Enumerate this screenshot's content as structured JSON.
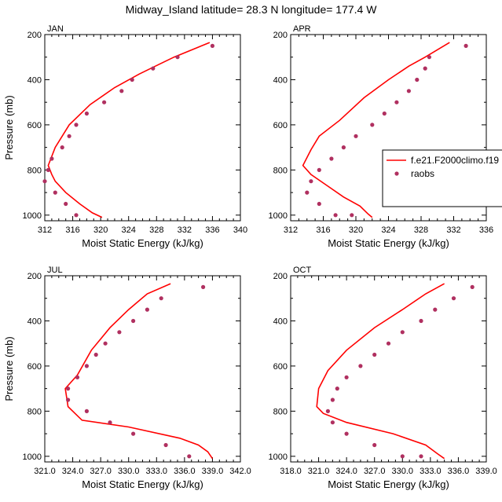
{
  "title": "Midway_Island  latitude= 28.3 N longitude= 177.4 W",
  "colors": {
    "model_line": "#ff0000",
    "obs_marker": "#b03060",
    "axes": "#000000"
  },
  "legend": {
    "placement": "right of APR panel",
    "model_label": "f.e21.F2000climo.f19",
    "obs_label": "raobs"
  },
  "chart_data": [
    {
      "type": "line",
      "panel_label": "JAN",
      "xlabel": "Moist Static Energy (kJ/kg)",
      "ylabel": "Pressure (mb)",
      "xlim": [
        312,
        340
      ],
      "ylim": [
        1025,
        200
      ],
      "xticks": [
        "312",
        "316",
        "320",
        "324",
        "328",
        "332",
        "336",
        "340"
      ],
      "yticks": [
        "200",
        "400",
        "600",
        "800",
        "1000"
      ],
      "series": [
        {
          "name": "f.e21.F2000climo.f19",
          "style": "line",
          "x": [
            335.6,
            330.5,
            328.5,
            325.5,
            322.0,
            318.5,
            315.5,
            313.5,
            312.5,
            313.0,
            313.5,
            315.0,
            317.0,
            318.8,
            320.2
          ],
          "y": [
            235,
            300,
            330,
            375,
            435,
            510,
            600,
            700,
            780,
            820,
            850,
            900,
            950,
            990,
            1010
          ]
        },
        {
          "name": "raobs",
          "style": "markers",
          "x": [
            336.0,
            331.0,
            327.5,
            324.5,
            323.0,
            320.5,
            318.0,
            316.5,
            315.5,
            314.5,
            313.0,
            312.5,
            312.0,
            313.5,
            315.0,
            316.5
          ],
          "y": [
            250,
            300,
            350,
            400,
            450,
            500,
            550,
            600,
            650,
            700,
            750,
            800,
            850,
            900,
            950,
            1000
          ]
        }
      ]
    },
    {
      "type": "line",
      "panel_label": "APR",
      "xlabel": "Moist Static Energy (kJ/kg)",
      "ylabel": "",
      "xlim": [
        312,
        336
      ],
      "ylim": [
        1025,
        200
      ],
      "xticks": [
        "312",
        "316",
        "320",
        "324",
        "328",
        "332",
        "336"
      ],
      "yticks": [
        "200",
        "400",
        "600",
        "800",
        "1000"
      ],
      "series": [
        {
          "name": "f.e21.F2000climo.f19",
          "style": "line",
          "x": [
            331.5,
            328.5,
            326.5,
            324.0,
            321.0,
            318.0,
            315.5,
            314.5,
            313.5,
            314.5,
            316.5,
            318.5,
            320.5,
            321.5,
            322.0
          ],
          "y": [
            235,
            300,
            340,
            400,
            480,
            580,
            650,
            710,
            780,
            820,
            870,
            920,
            960,
            995,
            1010
          ]
        },
        {
          "name": "raobs",
          "style": "markers",
          "x": [
            333.5,
            329.0,
            328.5,
            327.5,
            326.5,
            325.0,
            323.5,
            322.0,
            320.0,
            318.5,
            317.0,
            315.5,
            314.5,
            314.0,
            315.5,
            317.5,
            319.5
          ],
          "y": [
            250,
            300,
            350,
            400,
            450,
            500,
            550,
            600,
            650,
            700,
            750,
            800,
            850,
            900,
            950,
            1000,
            1000
          ]
        }
      ]
    },
    {
      "type": "line",
      "panel_label": "JUL",
      "xlabel": "Moist Static Energy (kJ/kg)",
      "ylabel": "Pressure (mb)",
      "xlim": [
        321.0,
        342.0
      ],
      "ylim": [
        1025,
        200
      ],
      "xticks": [
        "321.0",
        "324.0",
        "327.0",
        "330.0",
        "333.0",
        "336.0",
        "339.0",
        "342.0"
      ],
      "yticks": [
        "200",
        "400",
        "600",
        "800",
        "1000"
      ],
      "series": [
        {
          "name": "f.e21.F2000climo.f19",
          "style": "line",
          "x": [
            334.5,
            332.0,
            330.0,
            328.0,
            326.0,
            324.5,
            323.2,
            323.5,
            325.0,
            330.0,
            335.5,
            337.5,
            338.5,
            339.0
          ],
          "y": [
            235,
            280,
            350,
            430,
            530,
            640,
            700,
            780,
            840,
            870,
            920,
            950,
            980,
            1010
          ]
        },
        {
          "name": "raobs",
          "style": "markers",
          "x": [
            338.0,
            333.5,
            332.0,
            330.5,
            329.0,
            327.5,
            326.5,
            325.5,
            324.5,
            323.5,
            323.5,
            325.5,
            328.0,
            330.5,
            334.0,
            336.5
          ],
          "y": [
            250,
            300,
            350,
            400,
            450,
            500,
            550,
            600,
            650,
            700,
            750,
            800,
            850,
            900,
            950,
            1000
          ]
        }
      ]
    },
    {
      "type": "line",
      "panel_label": "OCT",
      "xlabel": "Moist Static Energy (kJ/kg)",
      "ylabel": "",
      "xlim": [
        318.0,
        339.0
      ],
      "ylim": [
        1025,
        200
      ],
      "xticks": [
        "318.0",
        "321.0",
        "324.0",
        "327.0",
        "330.0",
        "333.0",
        "336.0",
        "339.0"
      ],
      "yticks": [
        "200",
        "400",
        "600",
        "800",
        "1000"
      ],
      "series": [
        {
          "name": "f.e21.F2000climo.f19",
          "style": "line",
          "x": [
            334.5,
            332.5,
            330.0,
            327.0,
            324.0,
            322.0,
            321.0,
            320.8,
            321.5,
            324.0,
            329.0,
            332.5,
            333.8,
            334.5
          ],
          "y": [
            235,
            280,
            350,
            430,
            530,
            620,
            700,
            780,
            810,
            850,
            900,
            950,
            990,
            1010
          ]
        },
        {
          "name": "raobs",
          "style": "markers",
          "x": [
            337.5,
            335.5,
            333.5,
            332.0,
            330.0,
            328.5,
            327.0,
            325.5,
            324.0,
            323.0,
            322.5,
            322.0,
            322.5,
            324.0,
            327.0,
            330.0,
            332.0
          ],
          "y": [
            250,
            300,
            350,
            400,
            450,
            500,
            550,
            600,
            650,
            700,
            750,
            800,
            850,
            900,
            950,
            1000,
            1000
          ]
        }
      ]
    }
  ]
}
